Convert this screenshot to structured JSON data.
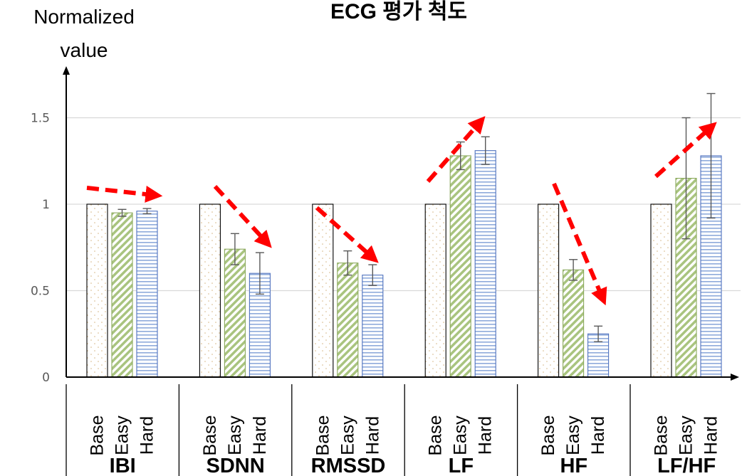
{
  "chart_data": {
    "type": "bar",
    "title": "ECG 평가 척도",
    "ylabel": "Normalized value",
    "ylabel_lines": [
      "Normalized",
      "value"
    ],
    "ylim": [
      0,
      1.5
    ],
    "yticks": [
      "0",
      "0.5",
      "1",
      "1.5"
    ],
    "grid": true,
    "groups": [
      "IBI",
      "SDNN",
      "RMSSD",
      "LF",
      "HF",
      "LF/HF"
    ],
    "conditions": [
      "Base",
      "Easy",
      "Hard"
    ],
    "series": [
      {
        "name": "Base",
        "values": [
          1,
          1,
          1,
          1,
          1,
          1
        ],
        "errors": [
          0,
          0,
          0,
          0,
          0,
          0
        ],
        "color": "#c5a06a"
      },
      {
        "name": "Easy",
        "values": [
          0.95,
          0.74,
          0.66,
          1.28,
          0.62,
          1.15
        ],
        "errors": [
          0.02,
          0.09,
          0.07,
          0.08,
          0.06,
          0.35
        ],
        "color": "#a9c47f"
      },
      {
        "name": "Hard",
        "values": [
          0.96,
          0.6,
          0.59,
          1.31,
          0.25,
          1.28
        ],
        "errors": [
          0.015,
          0.12,
          0.06,
          0.08,
          0.045,
          0.36
        ],
        "color": "#8eaadb"
      }
    ],
    "trend_arrows": [
      "flat",
      "down",
      "down",
      "up",
      "down",
      "up"
    ],
    "colors": {
      "arrow": "#ff0000",
      "grid": "#d9d9d9",
      "axis": "#000000",
      "errorbar": "#595959"
    }
  }
}
